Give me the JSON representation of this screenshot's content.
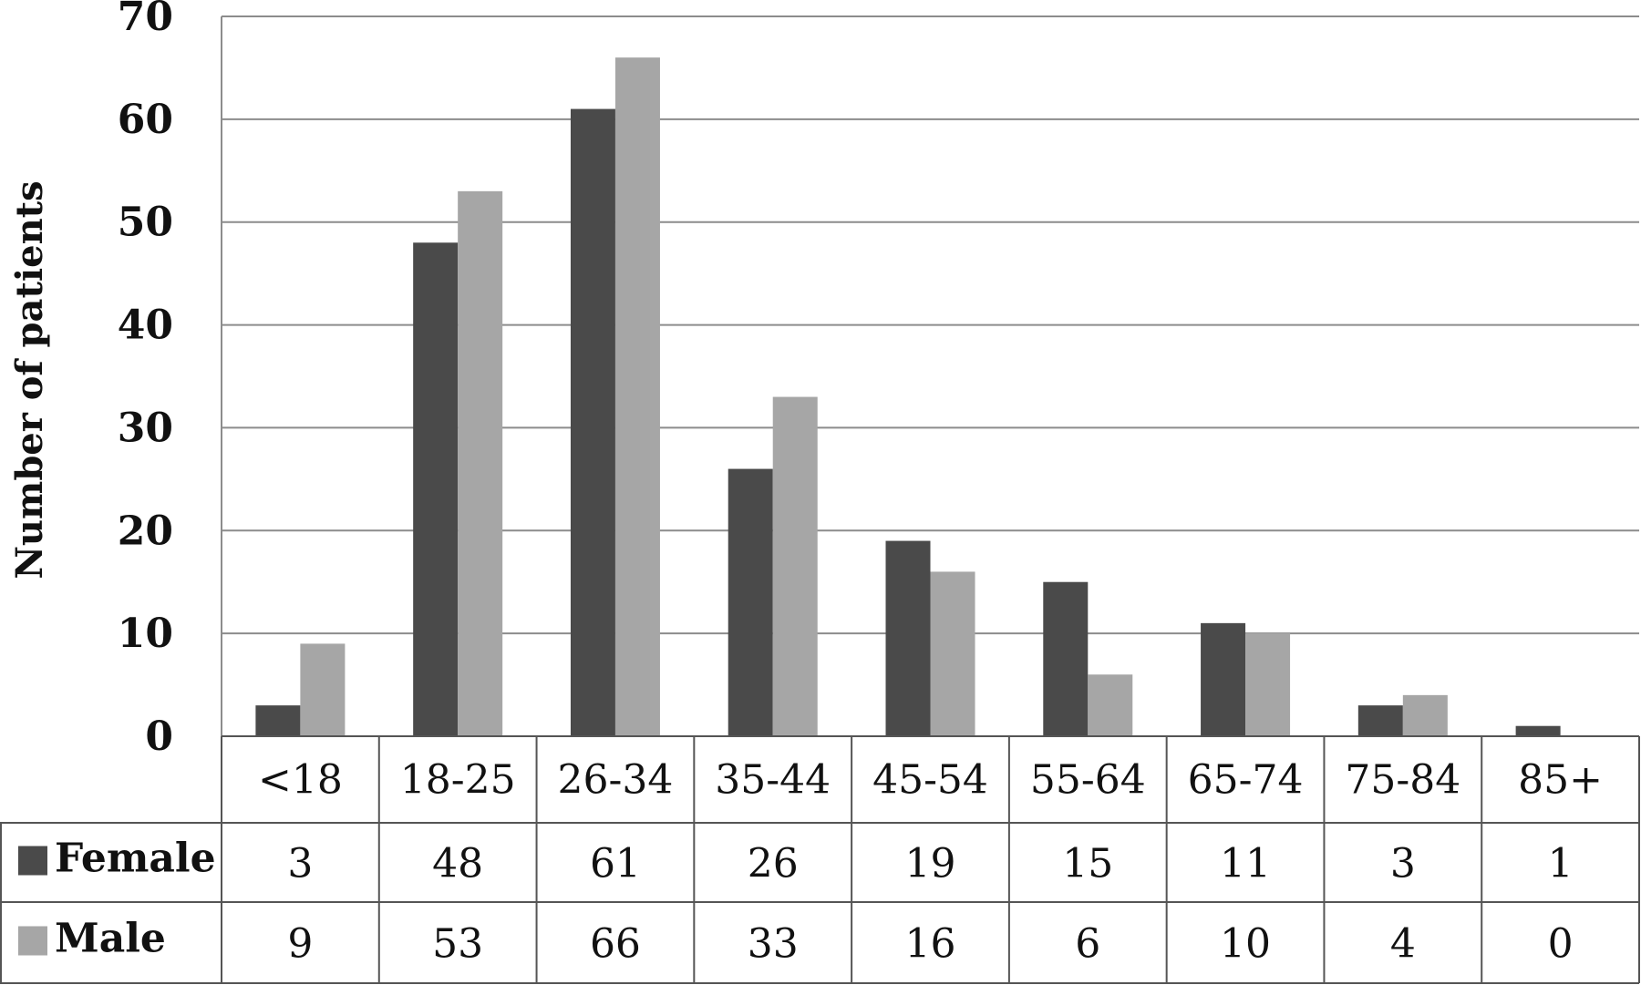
{
  "chart_data": {
    "type": "bar",
    "ylabel": "Number of patients",
    "ylim": [
      0,
      70
    ],
    "yticks": [
      0,
      10,
      20,
      30,
      40,
      50,
      60,
      70
    ],
    "grid": true,
    "legend": "data-table-rows",
    "categories": [
      "<18",
      "18-25",
      "26-34",
      "35-44",
      "45-54",
      "55-64",
      "65-74",
      "75-84",
      "85+"
    ],
    "series": [
      {
        "name": "Female",
        "color": "#4a4a4a",
        "values": [
          3,
          48,
          61,
          26,
          19,
          15,
          11,
          3,
          1
        ]
      },
      {
        "name": "Male",
        "color": "#a6a6a6",
        "values": [
          9,
          53,
          66,
          33,
          16,
          6,
          10,
          4,
          0
        ]
      }
    ]
  }
}
